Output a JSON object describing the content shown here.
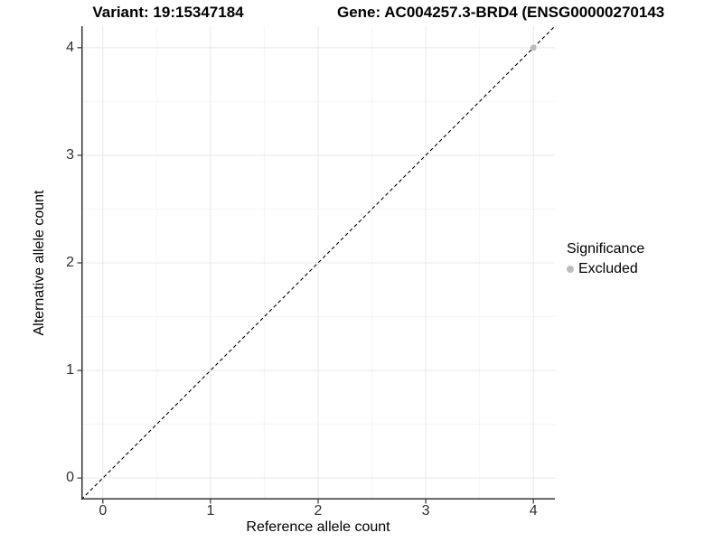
{
  "titles": {
    "variant": "Variant: 19:15347184",
    "gene": "Gene: AC004257.3-BRD4 (ENSG00000270143"
  },
  "colors": {
    "background": "#ffffff",
    "grid_major": "#e8e8e8",
    "grid_minor": "#f4f4f4",
    "axis_line": "#333333",
    "tick_text": "#303030",
    "identity_line": "#000000",
    "excluded_point": "#bdbdbd"
  },
  "chart_data": {
    "type": "scatter",
    "title_left": "Variant: 19:15347184",
    "title_right": "Gene: AC004257.3-BRD4 (ENSG00000270143",
    "xlabel": "Reference allele count",
    "ylabel": "Alternative allele count",
    "xlim": [
      -0.2,
      4.2
    ],
    "ylim": [
      -0.2,
      4.2
    ],
    "x_ticks": [
      0,
      1,
      2,
      3,
      4
    ],
    "y_ticks": [
      0,
      1,
      2,
      3,
      4
    ],
    "x_minor": [
      0.5,
      1.5,
      2.5,
      3.5
    ],
    "y_minor": [
      0.5,
      1.5,
      2.5,
      3.5
    ],
    "grid": true,
    "identity_line": {
      "slope": 1,
      "intercept": 0,
      "style": "dashed"
    },
    "series": [
      {
        "name": "Excluded",
        "color": "#bdbdbd",
        "points": [
          {
            "x": 4,
            "y": 4
          }
        ]
      }
    ],
    "legend": {
      "title": "Significance",
      "position": "right",
      "items": [
        {
          "label": "Excluded",
          "color": "#bdbdbd"
        }
      ]
    }
  }
}
